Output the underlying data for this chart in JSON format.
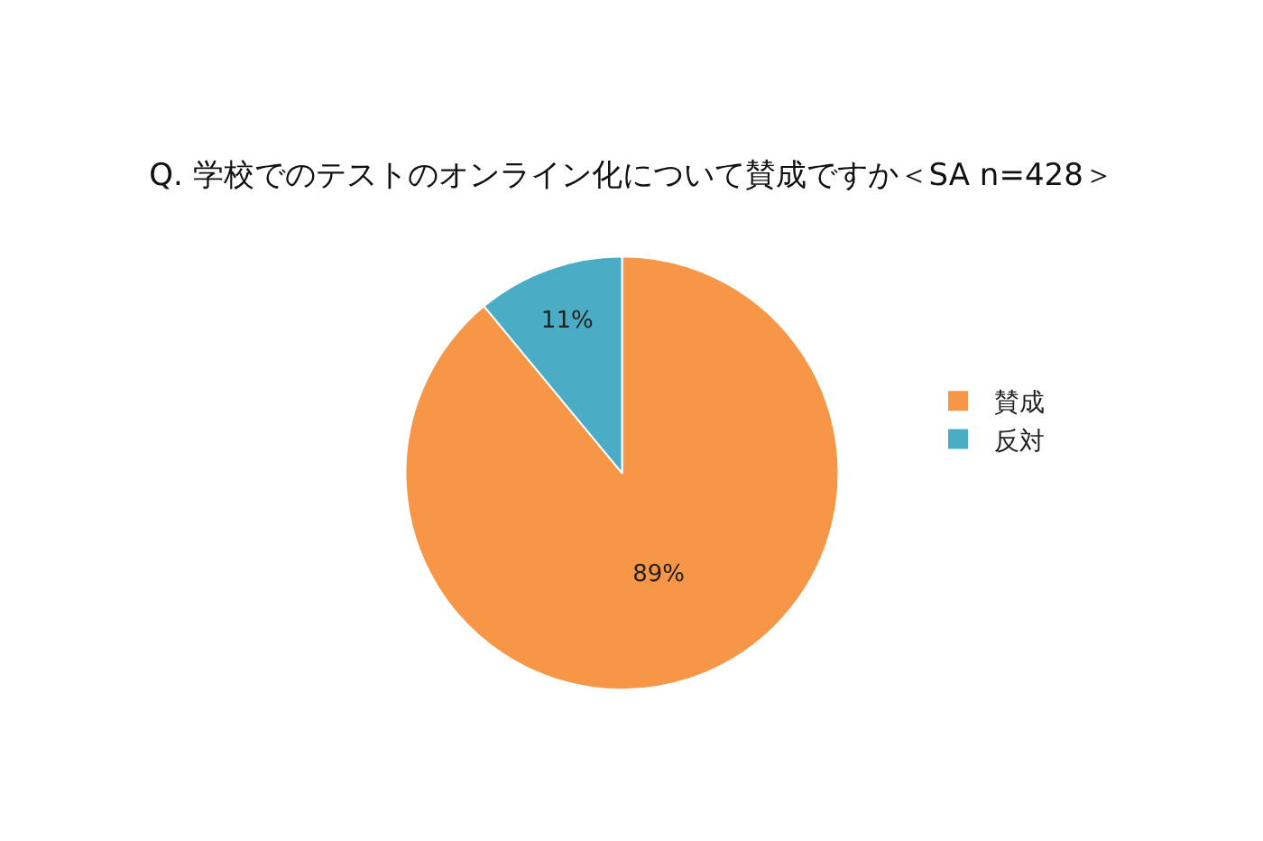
{
  "chart_data": {
    "type": "pie",
    "title": "Q. 学校でのテストのオンライン化について賛成ですか＜SA n=428＞",
    "categories": [
      "賛成",
      "反対"
    ],
    "values": [
      89,
      11
    ],
    "value_labels": [
      "89%",
      "11%"
    ],
    "colors": [
      "#f79646",
      "#4bacc6"
    ],
    "legend": "right"
  }
}
